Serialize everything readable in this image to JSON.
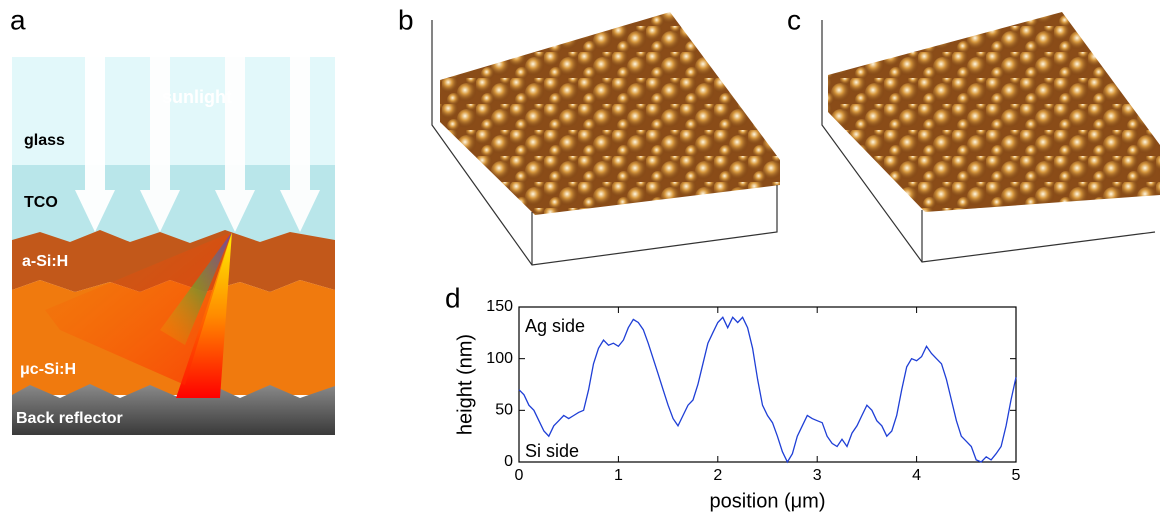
{
  "panels": {
    "a": "a",
    "b": "b",
    "c": "c",
    "d": "d"
  },
  "diagram": {
    "sunlight": "sunlight",
    "glass": "glass",
    "tco": "TCO",
    "asi": "a-Si:H",
    "ucsi": "μc-Si:H",
    "back": "Back reflector"
  },
  "chart_data": {
    "type": "line",
    "xlabel": "position (μm)",
    "ylabel": "height (nm)",
    "annotations": [
      "Ag side",
      "Si side"
    ],
    "color": "#1f3fd6",
    "x": [
      0,
      0.05,
      0.1,
      0.15,
      0.2,
      0.25,
      0.3,
      0.35,
      0.4,
      0.45,
      0.5,
      0.55,
      0.6,
      0.65,
      0.7,
      0.75,
      0.8,
      0.85,
      0.9,
      0.95,
      1,
      1.05,
      1.1,
      1.15,
      1.2,
      1.25,
      1.3,
      1.35,
      1.4,
      1.45,
      1.5,
      1.55,
      1.6,
      1.65,
      1.7,
      1.75,
      1.8,
      1.85,
      1.9,
      1.95,
      2,
      2.05,
      2.1,
      2.15,
      2.2,
      2.25,
      2.3,
      2.35,
      2.4,
      2.45,
      2.5,
      2.55,
      2.6,
      2.65,
      2.7,
      2.75,
      2.8,
      2.85,
      2.9,
      2.95,
      3,
      3.05,
      3.1,
      3.15,
      3.2,
      3.25,
      3.3,
      3.35,
      3.4,
      3.45,
      3.5,
      3.55,
      3.6,
      3.65,
      3.7,
      3.75,
      3.8,
      3.85,
      3.9,
      3.95,
      4,
      4.05,
      4.1,
      4.15,
      4.2,
      4.25,
      4.3,
      4.35,
      4.4,
      4.45,
      4.5,
      4.55,
      4.6,
      4.65,
      4.7,
      4.75,
      4.8,
      4.85,
      4.9,
      4.95,
      5
    ],
    "values": [
      70,
      65,
      55,
      50,
      40,
      30,
      25,
      35,
      40,
      45,
      42,
      45,
      48,
      50,
      70,
      95,
      110,
      118,
      113,
      115,
      112,
      118,
      130,
      138,
      135,
      128,
      115,
      100,
      85,
      70,
      55,
      42,
      35,
      45,
      55,
      60,
      75,
      95,
      115,
      125,
      135,
      140,
      130,
      140,
      135,
      140,
      130,
      110,
      80,
      55,
      45,
      38,
      25,
      10,
      0,
      8,
      25,
      35,
      45,
      42,
      40,
      38,
      25,
      18,
      15,
      22,
      15,
      28,
      35,
      45,
      55,
      50,
      40,
      35,
      25,
      30,
      45,
      70,
      92,
      100,
      98,
      102,
      112,
      105,
      100,
      95,
      80,
      60,
      40,
      25,
      20,
      15,
      2,
      0,
      5,
      2,
      8,
      15,
      35,
      60,
      82
    ],
    "xlim": [
      0,
      5
    ],
    "xticks": [
      0,
      1,
      2,
      3,
      4,
      5
    ],
    "ylim": [
      0,
      150
    ],
    "yticks": [
      0,
      50,
      100,
      150
    ]
  }
}
